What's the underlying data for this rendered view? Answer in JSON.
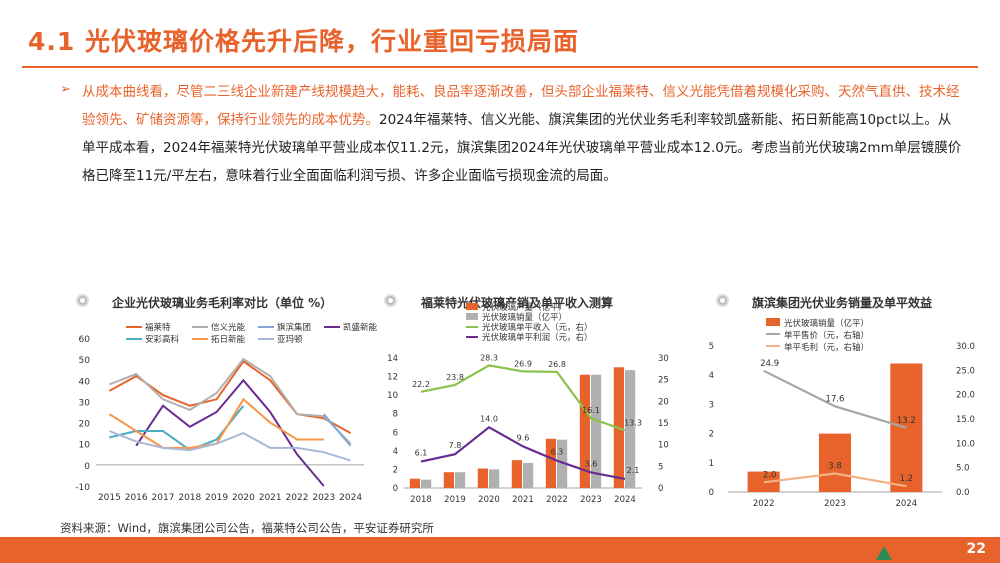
{
  "header": {
    "title": "4.1 光伏玻璃价格先升后降，行业重回亏损局面"
  },
  "body": {
    "bullet": "➢",
    "p_orange": "从成本曲线看，尽管二三线企业新建产线规模趋大，能耗、良品率逐渐改善，但头部企业福莱特、信义光能凭借着规模化采购、天然气直供、技术经验领先、矿储资源等，保持行业领先的成本优势。",
    "p_black": "2024年福莱特、信义光能、旗滨集团的光伏业务毛利率较凯盛新能、拓日新能高10pct以上。从单平成本看，2024年福莱特光伏玻璃单平营业成本仅11.2元，旗滨集团2024年光伏玻璃单平营业成本12.0元。考虑当前光伏玻璃2mm单层镀膜价格已降至11元/平左右，意味着行业全面面临利润亏损、许多企业面临亏损现金流的局面。"
  },
  "source": "资料来源：Wind，旗滨集团公司公告，福莱特公司公告，平安证券研究所",
  "page_number": "22",
  "colors": {
    "accent": "#E8632B",
    "gray": "#B0B0B0",
    "green": "#8BC34A",
    "purple": "#6A2C91",
    "blue": "#7FA7D8",
    "teal": "#4BACC6",
    "orange2": "#F79646",
    "lightorange": "#F4B183"
  },
  "chart_data": [
    {
      "type": "line",
      "title": "企业光伏玻璃业务毛利率对比（单位 %）",
      "x": [
        "2015",
        "2016",
        "2017",
        "2018",
        "2019",
        "2020",
        "2021",
        "2022",
        "2023",
        "2024"
      ],
      "ylim": [
        -10,
        60
      ],
      "yticks": [
        -10,
        0,
        10,
        20,
        30,
        40,
        50,
        60
      ],
      "legend_position": "top",
      "series": [
        {
          "name": "福莱特",
          "color": "#E8632B",
          "values": [
            35,
            42,
            33,
            28,
            31,
            49,
            40,
            24,
            22,
            15
          ]
        },
        {
          "name": "信义光能",
          "color": "#B0B0B0",
          "values": [
            38,
            43,
            31,
            26,
            34,
            50,
            42,
            24,
            23,
            10
          ]
        },
        {
          "name": "旗滨集团",
          "color": "#7FA7D8",
          "values": [
            null,
            null,
            null,
            null,
            null,
            null,
            null,
            null,
            24,
            9
          ]
        },
        {
          "name": "凯盛新能",
          "color": "#6A2C91",
          "values": [
            null,
            9,
            28,
            18,
            25,
            40,
            25,
            5,
            -10,
            null
          ]
        },
        {
          "name": "安彩高科",
          "color": "#4BACC6",
          "values": [
            13,
            16,
            16,
            7,
            12,
            28,
            null,
            null,
            null,
            null
          ]
        },
        {
          "name": "拓日新能",
          "color": "#F79646",
          "values": [
            24,
            16,
            8,
            8,
            10,
            31,
            20,
            12,
            12,
            null
          ]
        },
        {
          "name": "亚玛顿",
          "color": "#A9B8D6",
          "values": [
            16,
            11,
            8,
            7,
            10,
            15,
            8,
            8,
            6,
            2
          ]
        }
      ]
    },
    {
      "type": "bar",
      "title": "福莱特光伏玻璃产销及单平收入测算",
      "categories": [
        "2018",
        "2019",
        "2020",
        "2021",
        "2022",
        "2023",
        "2024"
      ],
      "ylim_left": [
        0,
        14
      ],
      "yticks_left": [
        0,
        2,
        4,
        6,
        8,
        10,
        12,
        14
      ],
      "ylim_right": [
        0,
        30
      ],
      "yticks_right": [
        0,
        5,
        10,
        15,
        20,
        25,
        30
      ],
      "legend_position": "top",
      "series": [
        {
          "name": "光伏玻璃产量（亿平）",
          "kind": "bar",
          "axis": "left",
          "color": "#E8632B",
          "values": [
            1.0,
            1.7,
            2.1,
            3.0,
            5.3,
            12.2,
            13.0
          ]
        },
        {
          "name": "光伏玻璃销量（亿平）",
          "kind": "bar",
          "axis": "left",
          "color": "#B0B0B0",
          "values": [
            0.9,
            1.7,
            2.0,
            2.7,
            5.2,
            12.2,
            12.7
          ]
        },
        {
          "name": "光伏玻璃单平收入（元，右）",
          "kind": "line",
          "axis": "right",
          "color": "#8BC34A",
          "values": [
            22.2,
            23.8,
            28.3,
            26.9,
            26.8,
            16.1,
            13.3
          ]
        },
        {
          "name": "光伏玻璃单平利润（元，右）",
          "kind": "line",
          "axis": "right",
          "color": "#6A2C91",
          "values": [
            6.1,
            7.8,
            14.0,
            9.6,
            6.3,
            3.6,
            2.1
          ]
        }
      ]
    },
    {
      "type": "bar",
      "title": "旗滨集团光伏业务销量及单平效益",
      "categories": [
        "2022",
        "2023",
        "2024"
      ],
      "ylim_left": [
        0,
        5
      ],
      "yticks_left": [
        0,
        1,
        2,
        3,
        4,
        5
      ],
      "ylim_right": [
        0,
        30
      ],
      "yticks_right": [
        "0.0",
        "5.0",
        "10.0",
        "15.0",
        "20.0",
        "25.0",
        "30.0"
      ],
      "legend_position": "top",
      "series": [
        {
          "name": "光伏玻璃销量（亿平）",
          "kind": "bar",
          "axis": "left",
          "color": "#E8632B",
          "values": [
            0.7,
            2.0,
            4.4
          ]
        },
        {
          "name": "单平售价（元，右轴）",
          "kind": "line",
          "axis": "right",
          "color": "#A6A6A6",
          "values": [
            24.9,
            17.6,
            13.2
          ]
        },
        {
          "name": "单平毛利（元，右轴）",
          "kind": "line",
          "axis": "right",
          "color": "#F4B183",
          "values": [
            2.0,
            3.8,
            1.2
          ]
        }
      ]
    }
  ]
}
